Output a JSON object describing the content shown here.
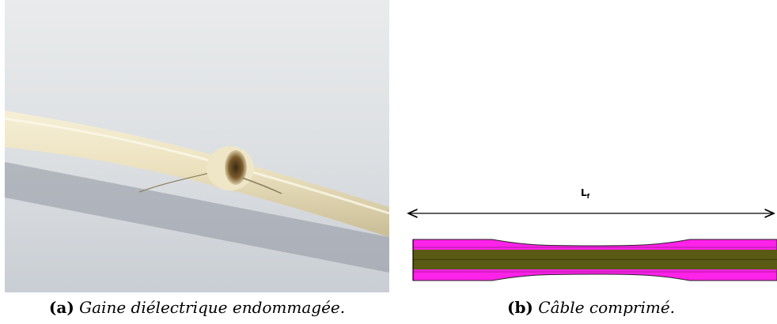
{
  "figure_a": {
    "tag": "(a)",
    "caption": "Gaine diélectrique endommagée."
  },
  "figure_b": {
    "tag": "(b)",
    "caption": "Câble comprimé.",
    "dimension_label": "L",
    "dimension_subscript": "f",
    "colors": {
      "outer_layer": "#ff22e8",
      "core": "#5a5a14",
      "outline": "#222222"
    }
  }
}
